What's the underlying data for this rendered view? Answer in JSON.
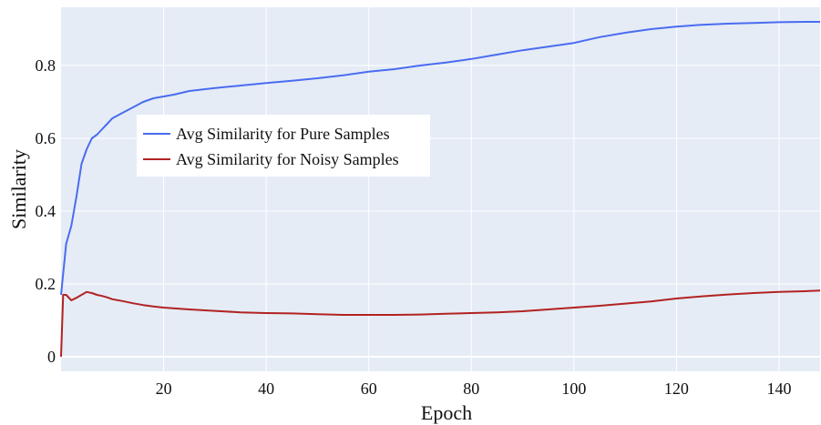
{
  "chart_data": {
    "type": "line",
    "title": "",
    "xlabel": "Epoch",
    "ylabel": "Similarity",
    "xlim": [
      0,
      148
    ],
    "ylim": [
      -0.04,
      0.96
    ],
    "xticks": [
      20,
      40,
      60,
      80,
      100,
      120,
      140
    ],
    "yticks": [
      0,
      0.2,
      0.4,
      0.6,
      0.8
    ],
    "ytick_labels": [
      "0",
      "0.2",
      "0.4",
      "0.6",
      "0.8"
    ],
    "grid": true,
    "legend_position": "upper-left-center",
    "series": [
      {
        "name": "Avg Similarity for Pure Samples",
        "color": "#4a6cf0",
        "x": [
          0,
          1,
          2,
          3,
          4,
          5,
          6,
          7,
          8,
          9,
          10,
          12,
          14,
          16,
          18,
          20,
          22,
          25,
          30,
          35,
          40,
          45,
          50,
          55,
          60,
          65,
          70,
          75,
          80,
          85,
          90,
          95,
          100,
          105,
          110,
          115,
          120,
          125,
          130,
          135,
          140,
          145,
          148
        ],
        "y": [
          0.17,
          0.31,
          0.36,
          0.44,
          0.53,
          0.57,
          0.6,
          0.61,
          0.625,
          0.64,
          0.655,
          0.67,
          0.685,
          0.7,
          0.71,
          0.715,
          0.72,
          0.73,
          0.738,
          0.745,
          0.752,
          0.758,
          0.765,
          0.773,
          0.783,
          0.79,
          0.8,
          0.808,
          0.818,
          0.83,
          0.842,
          0.852,
          0.862,
          0.878,
          0.89,
          0.9,
          0.907,
          0.912,
          0.915,
          0.917,
          0.919,
          0.92,
          0.92
        ]
      },
      {
        "name": "Avg Similarity for Noisy Samples",
        "color": "#b22222",
        "x": [
          0,
          0.4,
          1,
          2,
          3,
          4,
          5,
          6,
          7,
          8,
          9,
          10,
          12,
          14,
          16,
          18,
          20,
          25,
          30,
          35,
          40,
          45,
          50,
          55,
          60,
          65,
          70,
          75,
          80,
          85,
          90,
          95,
          100,
          105,
          110,
          115,
          120,
          125,
          130,
          135,
          140,
          145,
          148
        ],
        "y": [
          0.0,
          0.17,
          0.17,
          0.155,
          0.162,
          0.17,
          0.178,
          0.175,
          0.17,
          0.167,
          0.163,
          0.158,
          0.153,
          0.147,
          0.142,
          0.138,
          0.135,
          0.13,
          0.126,
          0.122,
          0.12,
          0.119,
          0.117,
          0.115,
          0.115,
          0.115,
          0.116,
          0.118,
          0.12,
          0.122,
          0.125,
          0.13,
          0.135,
          0.14,
          0.146,
          0.152,
          0.16,
          0.166,
          0.171,
          0.175,
          0.178,
          0.18,
          0.182
        ]
      }
    ]
  }
}
